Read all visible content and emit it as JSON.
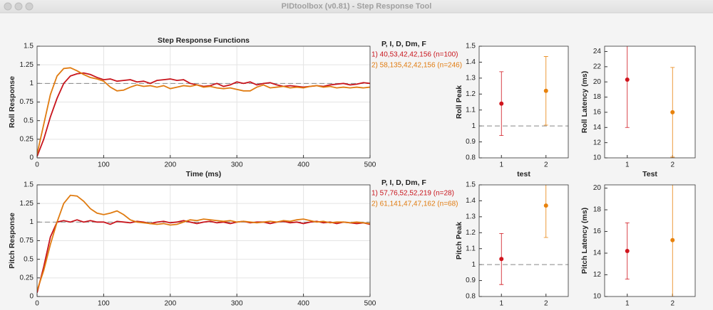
{
  "window": {
    "title": "PIDtoolbox  (v0.81) - Step Response Tool"
  },
  "chart_data": [
    {
      "type": "line",
      "title": "Step Response Functions",
      "ylabel": "Roll Response",
      "xlabel": "Time (ms)",
      "legend_title": "P, I, D, Dm, F",
      "grid": true,
      "reference_line": 1,
      "xlim": [
        0,
        500
      ],
      "ylim": [
        0,
        1.5
      ],
      "xticks": [
        0,
        100,
        200,
        300,
        400,
        500
      ],
      "yticks": [
        0,
        0.25,
        0.5,
        0.75,
        1,
        1.25,
        1.5
      ],
      "x": [
        0,
        10,
        20,
        30,
        40,
        50,
        60,
        70,
        80,
        90,
        100,
        110,
        120,
        130,
        140,
        150,
        160,
        170,
        180,
        190,
        200,
        210,
        220,
        230,
        240,
        250,
        260,
        270,
        280,
        290,
        300,
        310,
        320,
        330,
        340,
        350,
        360,
        370,
        380,
        390,
        400,
        410,
        420,
        430,
        440,
        450,
        460,
        470,
        480,
        490,
        500
      ],
      "series": [
        {
          "name": "1) 40,53,42,42,156  (n=100)",
          "color": "#c8141c",
          "values": [
            0.02,
            0.25,
            0.55,
            0.8,
            1.0,
            1.1,
            1.13,
            1.14,
            1.12,
            1.08,
            1.05,
            1.06,
            1.03,
            1.04,
            1.05,
            1.02,
            1.03,
            1.0,
            1.04,
            1.05,
            1.06,
            1.04,
            1.05,
            1.0,
            0.98,
            0.96,
            0.97,
            1.0,
            0.96,
            0.98,
            1.02,
            1.0,
            1.02,
            0.98,
            1.0,
            1.01,
            0.98,
            0.96,
            0.97,
            0.96,
            0.95,
            0.96,
            0.97,
            0.96,
            0.98,
            0.99,
            1.0,
            0.98,
            0.99,
            1.01,
            1.0
          ]
        },
        {
          "name": "2) 58,135,42,42,156  (n=246)",
          "color": "#e07b10",
          "values": [
            0.05,
            0.45,
            0.85,
            1.1,
            1.2,
            1.21,
            1.17,
            1.12,
            1.08,
            1.06,
            1.03,
            0.95,
            0.9,
            0.91,
            0.95,
            0.98,
            0.96,
            0.97,
            0.95,
            0.97,
            0.93,
            0.95,
            0.97,
            0.96,
            0.98,
            0.95,
            0.96,
            0.94,
            0.93,
            0.94,
            0.92,
            0.9,
            0.9,
            0.95,
            0.98,
            0.94,
            0.95,
            0.96,
            0.94,
            0.95,
            0.94,
            0.96,
            0.97,
            0.95,
            0.96,
            0.94,
            0.95,
            0.94,
            0.95,
            0.94,
            0.95
          ]
        }
      ]
    },
    {
      "type": "line",
      "ylabel": "Pitch Response",
      "legend_title": "P, I, D, Dm, F",
      "grid": true,
      "reference_line": 1,
      "xlim": [
        0,
        500
      ],
      "ylim": [
        0,
        1.5
      ],
      "xticks": [
        0,
        100,
        200,
        300,
        400,
        500
      ],
      "yticks": [
        0,
        0.25,
        0.5,
        0.75,
        1,
        1.25,
        1.5
      ],
      "x": [
        0,
        10,
        20,
        30,
        40,
        50,
        60,
        70,
        80,
        90,
        100,
        110,
        120,
        130,
        140,
        150,
        160,
        170,
        180,
        190,
        200,
        210,
        220,
        230,
        240,
        250,
        260,
        270,
        280,
        290,
        300,
        310,
        320,
        330,
        340,
        350,
        360,
        370,
        380,
        390,
        400,
        410,
        420,
        430,
        440,
        450,
        460,
        470,
        480,
        490,
        500
      ],
      "series": [
        {
          "name": "1) 57,76,52,52,219  (n=28)",
          "color": "#c8141c",
          "values": [
            0.05,
            0.4,
            0.8,
            1.0,
            1.02,
            1.0,
            1.03,
            1.0,
            1.02,
            1.0,
            1.0,
            0.97,
            1.01,
            1.0,
            0.99,
            1.01,
            1.0,
            0.98,
            1.0,
            1.01,
            0.99,
            1.0,
            1.02,
            1.0,
            0.98,
            1.0,
            1.01,
            0.99,
            1.0,
            0.98,
            1.0,
            1.01,
            0.99,
            1.0,
            1.0,
            0.98,
            1.0,
            1.01,
            0.99,
            1.0,
            0.98,
            1.0,
            1.01,
            0.99,
            1.0,
            0.98,
            1.0,
            0.99,
            0.98,
            0.99,
            0.97
          ]
        },
        {
          "name": "2) 61,141,47,47,162  (n=68)",
          "color": "#e07b10",
          "values": [
            0.08,
            0.35,
            0.7,
            1.0,
            1.25,
            1.36,
            1.35,
            1.28,
            1.18,
            1.12,
            1.1,
            1.12,
            1.15,
            1.1,
            1.03,
            1.0,
            0.99,
            0.98,
            0.97,
            0.98,
            0.96,
            0.97,
            1.0,
            1.03,
            1.02,
            1.04,
            1.03,
            1.02,
            1.01,
            1.02,
            1.0,
            1.01,
            1.0,
            0.99,
            1.0,
            1.01,
            1.0,
            1.02,
            1.01,
            1.03,
            1.04,
            1.02,
            1.0,
            1.01,
            0.99,
            1.0,
            1.0,
            0.99,
            1.0,
            0.99,
            0.98
          ]
        }
      ]
    },
    {
      "type": "errorbar",
      "ylabel": "Roll Peak",
      "xlabel": "test",
      "reference_line": 1,
      "xlim": [
        0.5,
        2.5
      ],
      "ylim": [
        0.8,
        1.5
      ],
      "xticks": [
        1,
        2
      ],
      "yticks": [
        0.8,
        0.9,
        1,
        1.1,
        1.2,
        1.3,
        1.4,
        1.5
      ],
      "x": [
        1,
        2
      ],
      "values": [
        1.14,
        1.22
      ],
      "errors": [
        0.2,
        0.215
      ],
      "colors": [
        "#d0141c",
        "#e8820c"
      ]
    },
    {
      "type": "errorbar",
      "ylabel": "Roll Latency (ms)",
      "xlabel": "Test",
      "xlim": [
        0.5,
        2.5
      ],
      "ylim": [
        10,
        24.7
      ],
      "xticks": [
        1,
        2
      ],
      "yticks": [
        10,
        12,
        14,
        16,
        18,
        20,
        22,
        24
      ],
      "x": [
        1,
        2
      ],
      "values": [
        20.3,
        16
      ],
      "errors": [
        6.3,
        5.9
      ],
      "colors": [
        "#d0141c",
        "#e8820c"
      ]
    },
    {
      "type": "errorbar",
      "ylabel": "Pitch Peak",
      "reference_line": 1,
      "xlim": [
        0.5,
        2.5
      ],
      "ylim": [
        0.8,
        1.5
      ],
      "xticks": [
        1,
        2
      ],
      "yticks": [
        0.8,
        0.9,
        1,
        1.1,
        1.2,
        1.3,
        1.4,
        1.5
      ],
      "x": [
        1,
        2
      ],
      "values": [
        1.035,
        1.37
      ],
      "errors": [
        0.16,
        0.2
      ],
      "colors": [
        "#d0141c",
        "#e8820c"
      ]
    },
    {
      "type": "errorbar",
      "ylabel": "Pitch Latency (ms)",
      "xlim": [
        0.5,
        2.5
      ],
      "ylim": [
        10,
        20.3
      ],
      "xticks": [
        1,
        2
      ],
      "yticks": [
        10,
        12,
        14,
        16,
        18,
        20
      ],
      "x": [
        1,
        2
      ],
      "values": [
        14.2,
        15.2
      ],
      "errors": [
        2.6,
        5.2
      ],
      "colors": [
        "#d0141c",
        "#e8820c"
      ]
    }
  ]
}
